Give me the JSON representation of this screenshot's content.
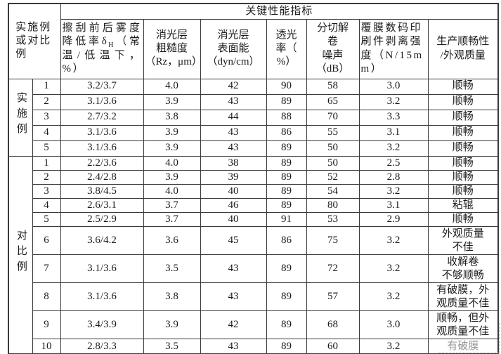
{
  "colors": {
    "border": "#3a3a3a",
    "text": "#1b1b1b",
    "faded_text": "#979797"
  },
  "table": {
    "span_header": "关键性能指标",
    "corner_header": "实施例或对比例",
    "columns": {
      "haze_prefix": "擦刮前后雾度降低率δ",
      "haze_sub": "H",
      "haze_suffix": "（常温/低温下，%）",
      "roughness": "消光层\n粗糙度\n（Rz，μm）",
      "surface_energy": "消光层\n表面能（dyn/cm）",
      "transmittance": "透光\n率（\n%）",
      "noise": "分切解\n卷\n噪声（dB）",
      "peel": "覆膜数码印\n刷件剥离强\n度（N/15m\nm）",
      "production": "生产顺畅性\n/外观质量"
    },
    "groups": [
      {
        "label": "实施例",
        "rows": [
          {
            "no": "1",
            "haze": "3.2/3.7",
            "roughness": "4.0",
            "surface_energy": "42",
            "transmittance": "90",
            "noise": "58",
            "peel": "3.0",
            "production": "顺畅"
          },
          {
            "no": "2",
            "haze": "3.1/3.6",
            "roughness": "3.9",
            "surface_energy": "43",
            "transmittance": "89",
            "noise": "65",
            "peel": "3.2",
            "production": "顺畅"
          },
          {
            "no": "3",
            "haze": "2.7/3.2",
            "roughness": "3.8",
            "surface_energy": "44",
            "transmittance": "88",
            "noise": "70",
            "peel": "3.3",
            "production": "顺畅"
          },
          {
            "no": "4",
            "haze": "3.1/3.6",
            "roughness": "3.9",
            "surface_energy": "43",
            "transmittance": "86",
            "noise": "55",
            "peel": "3.1",
            "production": "顺畅"
          },
          {
            "no": "5",
            "haze": "3.1/3.6",
            "roughness": "3.9",
            "surface_energy": "43",
            "transmittance": "89",
            "noise": "50",
            "peel": "3.2",
            "production": "顺畅"
          }
        ]
      },
      {
        "label": "对比例",
        "rows": [
          {
            "no": "1",
            "haze": "2.2/3.6",
            "roughness": "4.0",
            "surface_energy": "38",
            "transmittance": "89",
            "noise": "50",
            "peel": "2.5",
            "production": "顺畅"
          },
          {
            "no": "2",
            "haze": "2.4/2.8",
            "roughness": "3.9",
            "surface_energy": "39",
            "transmittance": "89",
            "noise": "52",
            "peel": "2.8",
            "production": "顺畅"
          },
          {
            "no": "3",
            "haze": "3.8/4.5",
            "roughness": "4.0",
            "surface_energy": "40",
            "transmittance": "89",
            "noise": "54",
            "peel": "3.2",
            "production": "顺畅"
          },
          {
            "no": "4",
            "haze": "2.6/3.1",
            "roughness": "3.7",
            "surface_energy": "46",
            "transmittance": "89",
            "noise": "80",
            "peel": "3.1",
            "production": "粘辊"
          },
          {
            "no": "5",
            "haze": "2.5/2.9",
            "roughness": "3.7",
            "surface_energy": "40",
            "transmittance": "91",
            "noise": "53",
            "peel": "2.9",
            "production": "顺畅"
          },
          {
            "no": "6",
            "haze": "3.6/4.2",
            "roughness": "3.6",
            "surface_energy": "45",
            "transmittance": "86",
            "noise": "75",
            "peel": "3.2",
            "production": "外观质量\n不佳"
          },
          {
            "no": "7",
            "haze": "3.1/3.6",
            "roughness": "3.5",
            "surface_energy": "43",
            "transmittance": "89",
            "noise": "72",
            "peel": "3.2",
            "production": "收解卷\n不够顺畅"
          },
          {
            "no": "8",
            "haze": "3.1/3.6",
            "roughness": "3.8",
            "surface_energy": "43",
            "transmittance": "89",
            "noise": "57",
            "peel": "3.2",
            "production": "有破膜，外\n观质量不佳"
          },
          {
            "no": "9",
            "haze": "3.4/3.9",
            "roughness": "3.9",
            "surface_energy": "42",
            "transmittance": "89",
            "noise": "68",
            "peel": "3.0",
            "production": "顺畅，但外\n观质量不佳"
          },
          {
            "no": "10",
            "haze": "2.8/3.3",
            "roughness": "3.5",
            "surface_energy": "43",
            "transmittance": "89",
            "noise": "60",
            "peel": "3.2",
            "production": "有破膜",
            "faded": true
          }
        ]
      }
    ]
  }
}
